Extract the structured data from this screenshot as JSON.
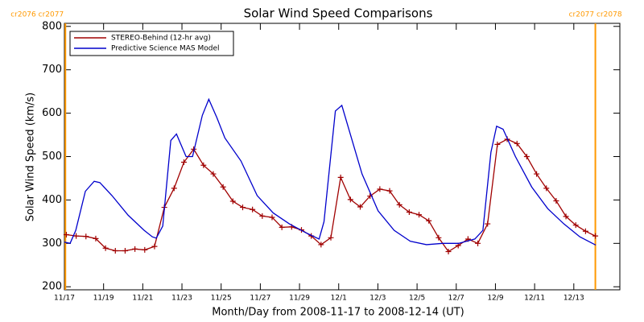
{
  "chart_data": {
    "type": "line",
    "title": "Solar Wind Speed Comparisons",
    "xlabel": "Month/Day from 2008-11-17 to 2008-12-14 (UT)",
    "ylabel": "Solar Wind Speed (km/s)",
    "xlim": [
      0,
      28.35
    ],
    "ylim": [
      193,
      807
    ],
    "xticks": [
      {
        "value": 0,
        "label": "11/17"
      },
      {
        "value": 2,
        "label": "11/19"
      },
      {
        "value": 4,
        "label": "11/21"
      },
      {
        "value": 6,
        "label": "11/23"
      },
      {
        "value": 8,
        "label": "11/25"
      },
      {
        "value": 10,
        "label": "11/27"
      },
      {
        "value": 12,
        "label": "11/29"
      },
      {
        "value": 14,
        "label": "12/1"
      },
      {
        "value": 16,
        "label": "12/3"
      },
      {
        "value": 18,
        "label": "12/5"
      },
      {
        "value": 20,
        "label": "12/7"
      },
      {
        "value": 22,
        "label": "12/9"
      },
      {
        "value": 24,
        "label": "12/11"
      },
      {
        "value": 26,
        "label": "12/13"
      }
    ],
    "yticks": [
      200,
      300,
      400,
      500,
      600,
      700,
      800
    ],
    "annotations": [
      {
        "x": 0.05,
        "label": "cr2076 cr2077",
        "color": "#ff9900"
      },
      {
        "x": 27.1,
        "label": "cr2077 cr2078",
        "color": "#ff9900"
      }
    ],
    "series": [
      {
        "name": "STEREO-Behind (12-hr avg)",
        "color": "#a00000",
        "marker": "+",
        "x": [
          0.1,
          0.6,
          1.1,
          1.6,
          2.1,
          2.6,
          3.1,
          3.6,
          4.1,
          4.6,
          5.1,
          5.6,
          6.1,
          6.6,
          7.1,
          7.6,
          8.1,
          8.6,
          9.1,
          9.6,
          10.1,
          10.6,
          11.1,
          11.6,
          12.1,
          12.6,
          13.1,
          13.6,
          14.1,
          14.6,
          15.1,
          15.6,
          16.1,
          16.6,
          17.1,
          17.6,
          18.1,
          18.6,
          19.1,
          19.6,
          20.1,
          20.6,
          21.1,
          21.6,
          22.1,
          22.6,
          23.1,
          23.6,
          24.1,
          24.6,
          25.1,
          25.6,
          26.1,
          26.6,
          27.1
        ],
        "values": [
          320,
          317,
          316,
          311,
          289,
          283,
          283,
          287,
          285,
          293,
          383,
          427,
          487,
          517,
          480,
          460,
          430,
          397,
          383,
          378,
          363,
          360,
          337,
          338,
          331,
          317,
          297,
          313,
          452,
          401,
          384,
          409,
          425,
          421,
          389,
          372,
          366,
          352,
          313,
          281,
          295,
          310,
          300,
          345,
          528,
          540,
          530,
          500,
          460,
          427,
          398,
          362,
          342,
          328,
          317
        ]
      },
      {
        "name": "Predictive Science MAS Model",
        "color": "#0000cc",
        "x": [
          0,
          0.29,
          0.58,
          1.07,
          1.52,
          1.81,
          2.43,
          3.25,
          4.07,
          4.49,
          4.69,
          5.02,
          5.43,
          5.72,
          6.21,
          6.54,
          7.04,
          7.37,
          7.78,
          8.19,
          9.01,
          9.84,
          10.66,
          11.48,
          12.3,
          13.0,
          13.25,
          13.83,
          14.16,
          14.57,
          15.19,
          16.01,
          16.83,
          17.65,
          18.48,
          19.3,
          20.12,
          20.95,
          21.36,
          21.77,
          22.06,
          22.39,
          23.02,
          23.85,
          24.67,
          25.49,
          26.31,
          27.12
        ],
        "values": [
          303,
          300,
          330,
          420,
          443,
          440,
          410,
          365,
          330,
          315,
          312,
          340,
          537,
          552,
          500,
          500,
          595,
          632,
          590,
          543,
          490,
          410,
          370,
          345,
          325,
          310,
          350,
          605,
          618,
          555,
          460,
          375,
          330,
          305,
          297,
          300,
          300,
          310,
          330,
          510,
          570,
          563,
          500,
          430,
          380,
          345,
          315,
          296
        ]
      }
    ]
  }
}
